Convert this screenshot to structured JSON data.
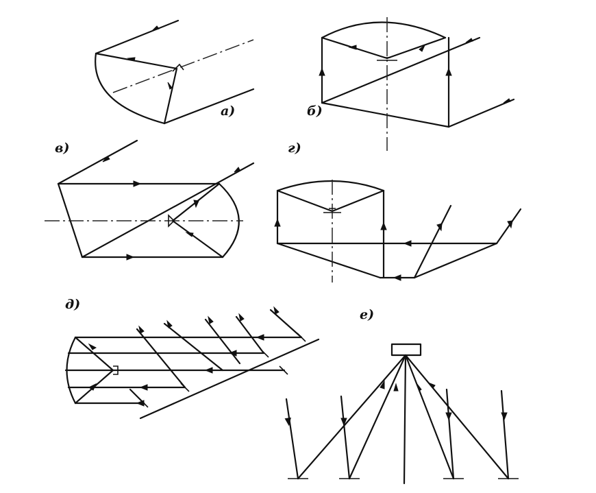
{
  "figure": {
    "labels": {
      "a": "а)",
      "b": "б)",
      "v": "в)",
      "g": "г)",
      "d": "д)",
      "e": "е)"
    },
    "colors": {
      "ink": "#111111",
      "background": "#ffffff"
    }
  }
}
